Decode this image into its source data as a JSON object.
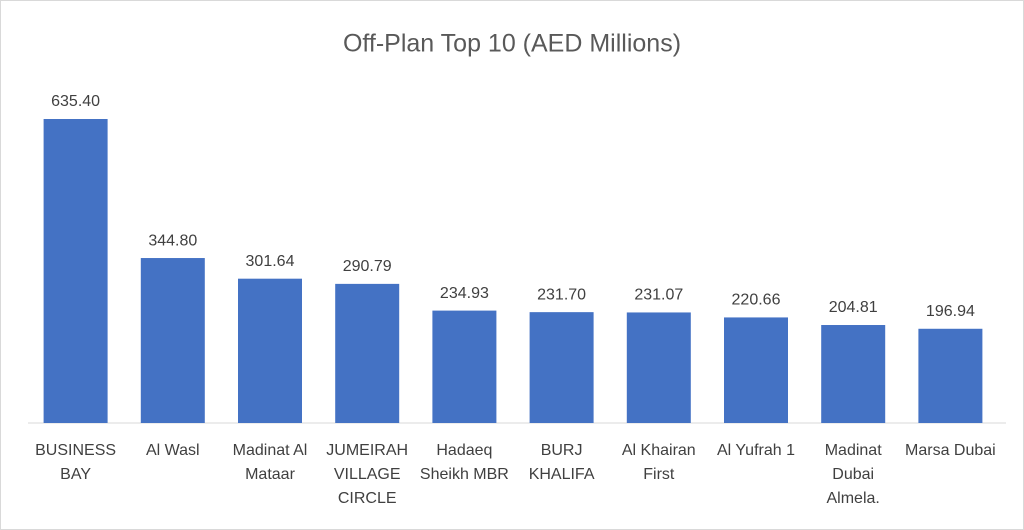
{
  "chart_data": {
    "type": "bar",
    "title": "Off-Plan Top 10 (AED Millions)",
    "categories": [
      "BUSINESS BAY",
      "Al Wasl",
      "Madinat Al Mataar",
      "JUMEIRAH VILLAGE CIRCLE",
      "Hadaeq Sheikh MBR",
      "BURJ KHALIFA",
      "Al Khairan First",
      "Al Yufrah 1",
      "Madinat Dubai Almela.",
      "Marsa Dubai"
    ],
    "values": [
      635.4,
      344.8,
      301.64,
      290.79,
      234.93,
      231.7,
      231.07,
      220.66,
      204.81,
      196.94
    ],
    "value_labels": [
      "635.40",
      "344.80",
      "301.64",
      "290.79",
      "234.93",
      "231.70",
      "231.07",
      "220.66",
      "204.81",
      "196.94"
    ],
    "color": "#4472c4"
  }
}
